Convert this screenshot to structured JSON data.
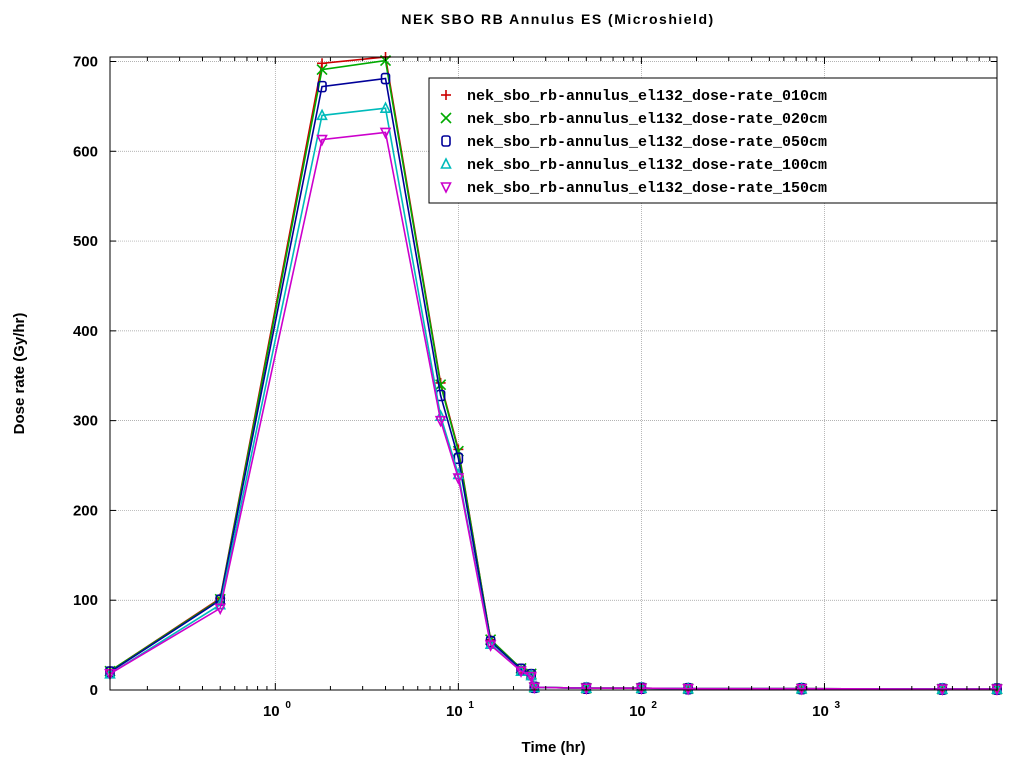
{
  "chart_data": {
    "type": "line",
    "title": "NEK SBO RB Annulus ES (Microshield)",
    "xlabel": "Time (hr)",
    "ylabel": "Dose rate (Gy/hr)",
    "xscale": "log",
    "xlim": [
      0.125,
      8760
    ],
    "ylim": [
      0,
      705
    ],
    "x_ticks": [
      {
        "value": 1,
        "base": "10",
        "exp": "0"
      },
      {
        "value": 10,
        "base": "10",
        "exp": "1"
      },
      {
        "value": 100,
        "base": "10",
        "exp": "2"
      },
      {
        "value": 1000,
        "base": "10",
        "exp": "3"
      }
    ],
    "y_ticks": [
      0,
      100,
      200,
      300,
      400,
      500,
      600,
      700
    ],
    "grid": true,
    "legend_position": "top-right",
    "x": [
      0.125,
      0.5,
      1.8,
      4,
      8,
      10,
      15,
      22,
      25,
      26,
      50,
      100,
      180,
      750,
      4400,
      8760
    ],
    "series": [
      {
        "name": "nek_sbo_rb-annulus_el132_dose-rate_010cm",
        "color": "#cc0000",
        "marker": "plus",
        "values": [
          21,
          102,
          698,
          705,
          342,
          268,
          56,
          24,
          18,
          3,
          2,
          2,
          1.5,
          1.5,
          1,
          1
        ]
      },
      {
        "name": "nek_sbo_rb-annulus_el132_dose-rate_020cm",
        "color": "#00aa00",
        "marker": "x",
        "values": [
          21,
          101,
          691,
          701,
          340,
          266,
          56,
          24,
          18,
          3,
          2,
          2,
          1.5,
          1.5,
          1,
          1
        ]
      },
      {
        "name": "nek_sbo_rb-annulus_el132_dose-rate_050cm",
        "color": "#000099",
        "marker": "square",
        "values": [
          20,
          100,
          672,
          681,
          328,
          258,
          54,
          23,
          17,
          3,
          2,
          2,
          1.5,
          1.5,
          1,
          1
        ]
      },
      {
        "name": "nek_sbo_rb-annulus_el132_dose-rate_100cm",
        "color": "#00bbbb",
        "marker": "triangle-up",
        "values": [
          18,
          95,
          640,
          648,
          305,
          240,
          51,
          21,
          16,
          3,
          2,
          2,
          1.5,
          1.5,
          1,
          1
        ]
      },
      {
        "name": "nek_sbo_rb-annulus_el132_dose-rate_150cm",
        "color": "#cc00cc",
        "marker": "triangle-down",
        "values": [
          18,
          91,
          613,
          621,
          300,
          236,
          50,
          21,
          15,
          3,
          2,
          2,
          1.5,
          1.5,
          1,
          1
        ]
      }
    ]
  }
}
